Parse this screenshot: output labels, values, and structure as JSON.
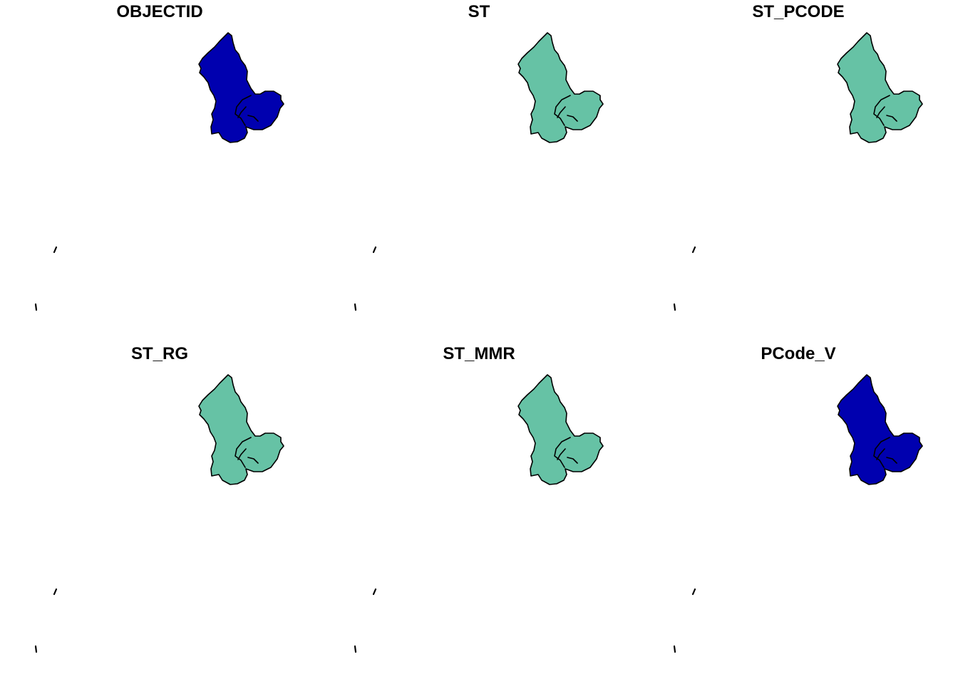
{
  "panels": [
    {
      "title": "OBJECTID",
      "fill_color": "#0000AF"
    },
    {
      "title": "ST",
      "fill_color": "#66C2A5"
    },
    {
      "title": "ST_PCODE",
      "fill_color": "#66C2A5"
    },
    {
      "title": "ST_RG",
      "fill_color": "#66C2A5"
    },
    {
      "title": "ST_MMR",
      "fill_color": "#66C2A5"
    },
    {
      "title": "PCode_V",
      "fill_color": "#0000AF"
    }
  ]
}
